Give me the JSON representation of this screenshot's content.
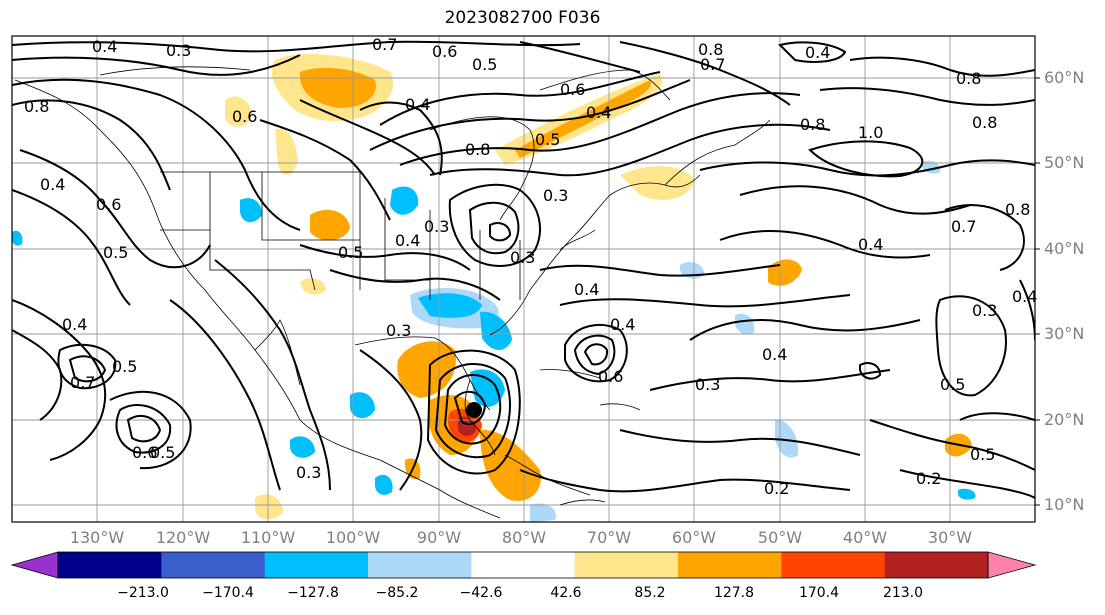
{
  "title": "2023082700 F036",
  "lat_labels": [
    "60°N",
    "50°N",
    "40°N",
    "30°N",
    "20°N",
    "10°N"
  ],
  "lon_labels": [
    "130°W",
    "120°W",
    "110°W",
    "100°W",
    "90°W",
    "80°W",
    "70°W",
    "60°W",
    "50°W",
    "40°W",
    "30°W"
  ],
  "colorbar": {
    "labels": [
      "−213.0",
      "−170.4",
      "−127.8",
      "−85.2",
      "−42.6",
      "42.6",
      "85.2",
      "127.8",
      "170.4",
      "213.0"
    ],
    "colors": [
      "#9932cc",
      "#00008b",
      "#3a5fcd",
      "#00bfff",
      "#add8f7",
      "#ffffff",
      "#ffe68c",
      "#ffa500",
      "#ff4500",
      "#b22222",
      "#ff82ab"
    ]
  },
  "contour_labels": [
    "0.4",
    "0.3",
    "0.7",
    "0.6",
    "0.5",
    "0.8",
    "0.4",
    "0.8",
    "0.7",
    "0.8",
    "0.6",
    "1.0",
    "0.8",
    "0.8",
    "0.7",
    "0.8",
    "0.4",
    "0.6",
    "0.5",
    "0.4",
    "0.5",
    "0.6",
    "0.4",
    "0.3",
    "0.4",
    "0.3",
    "0.5",
    "0.4",
    "0.4",
    "0.3",
    "0.7",
    "0.5",
    "0.6",
    "0.5",
    "0.3",
    "0.4",
    "0.6",
    "0.4",
    "0.3",
    "0.2",
    "0.2",
    "0.5",
    "0.4",
    "0.3",
    "0.3",
    "0.8",
    "0.4",
    "0.5"
  ]
}
